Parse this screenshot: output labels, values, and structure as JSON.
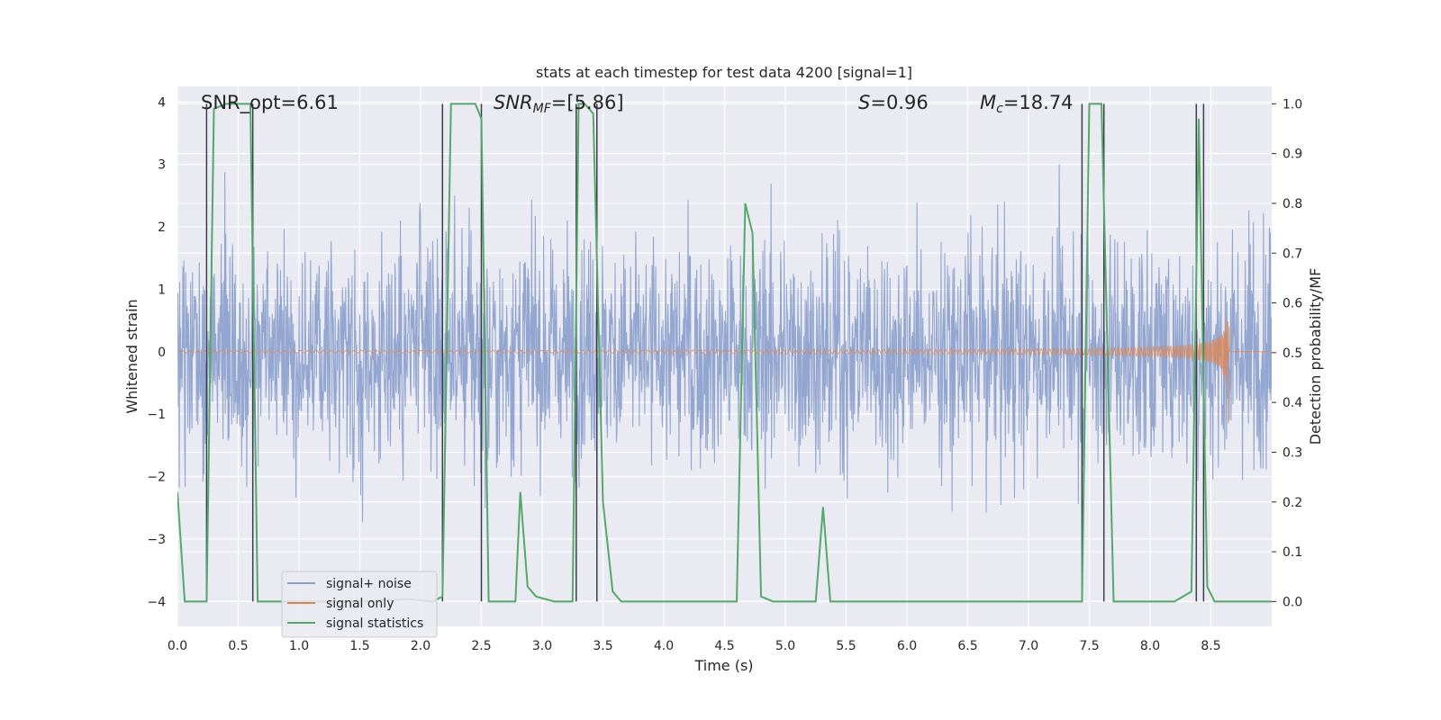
{
  "chart_data": {
    "type": "line",
    "title": "stats at each timestep for test data 4200 [signal=1]",
    "xlabel": "Time (s)",
    "ylabel_left": "Whitened strain",
    "ylabel_right": "Detection probability/MF",
    "xlim": [
      0,
      9.0
    ],
    "ylim_left": [
      -4.4,
      4.25
    ],
    "ylim_right": [
      -0.05,
      1.035
    ],
    "x_ticks": [
      "0.0",
      "0.5",
      "1.0",
      "1.5",
      "2.0",
      "2.5",
      "3.0",
      "3.5",
      "4.0",
      "4.5",
      "5.0",
      "5.5",
      "6.0",
      "6.5",
      "7.0",
      "7.5",
      "8.0",
      "8.5"
    ],
    "y_ticks_left": [
      "−4",
      "−3",
      "−2",
      "−1",
      "0",
      "1",
      "2",
      "3",
      "4"
    ],
    "y_ticks_right": [
      "0.0",
      "0.1",
      "0.2",
      "0.3",
      "0.4",
      "0.5",
      "0.6",
      "0.7",
      "0.8",
      "0.9",
      "1.0"
    ],
    "grid": true,
    "annotations": {
      "snr_opt": "SNR_opt=6.61",
      "snr_mf_sym": "SNR",
      "snr_mf_sub": "MF",
      "snr_mf_val": "=[5.86]",
      "s_sym": "S",
      "s_val": "=0.96",
      "mc_sym": "M",
      "mc_sub": "c",
      "mc_val": "=18.74"
    },
    "series": [
      {
        "name": "signal+ noise",
        "color": "#8a9fcc",
        "description": "whitened strain noise, amplitude approx ±4"
      },
      {
        "name": "signal only",
        "color": "#dd8452",
        "description": "chirp waveform growing to ±1.4 near t=8.65 s"
      },
      {
        "name": "signal statistics",
        "color": "#55a868",
        "axis": "right",
        "x": [
          0.0,
          0.06,
          0.24,
          0.3,
          0.4,
          0.6,
          0.66,
          0.75,
          1.0,
          1.5,
          1.9,
          2.1,
          2.18,
          2.25,
          2.3,
          2.45,
          2.5,
          2.56,
          2.7,
          2.78,
          2.82,
          2.88,
          2.95,
          3.1,
          3.25,
          3.3,
          3.35,
          3.42,
          3.5,
          3.58,
          3.65,
          3.75,
          4.0,
          4.5,
          4.6,
          4.67,
          4.73,
          4.8,
          4.9,
          5.0,
          5.25,
          5.31,
          5.37,
          5.5,
          6.0,
          6.5,
          7.0,
          7.44,
          7.5,
          7.56,
          7.6,
          7.7,
          7.75,
          7.8,
          8.0,
          8.2,
          8.34,
          8.4,
          8.47,
          8.53,
          8.6,
          9.0
        ],
        "values": [
          0.22,
          0.0,
          0.0,
          0.99,
          1.0,
          1.0,
          0.0,
          0.0,
          0.0,
          0.0,
          0.005,
          0.0,
          0.01,
          1.0,
          1.0,
          1.0,
          0.97,
          0.0,
          0.0,
          0.0,
          0.22,
          0.03,
          0.01,
          0.0,
          0.0,
          1.0,
          1.0,
          0.98,
          0.2,
          0.02,
          0.0,
          0.0,
          0.0,
          0.0,
          0.0,
          0.8,
          0.74,
          0.01,
          0.0,
          0.0,
          0.0,
          0.19,
          0.0,
          0.0,
          0.0,
          0.0,
          0.0,
          0.0,
          1.0,
          1.0,
          1.0,
          0.0,
          0.0,
          0.0,
          0.0,
          0.0,
          0.02,
          0.97,
          0.03,
          0.0,
          0.0,
          0.0
        ]
      }
    ],
    "vertical_lines_x": [
      0.24,
      0.62,
      2.18,
      2.5,
      3.28,
      3.45,
      7.44,
      7.62,
      8.38,
      8.44
    ]
  },
  "legend": {
    "items": [
      {
        "label": "signal+ noise",
        "color": "#8a9fcc"
      },
      {
        "label": "signal only",
        "color": "#dd8452"
      },
      {
        "label": "signal statistics",
        "color": "#55a868"
      }
    ]
  },
  "colors": {
    "plot_bg": "#eaeaf2",
    "grid": "#ffffff",
    "vline": "#3a3f4b"
  }
}
